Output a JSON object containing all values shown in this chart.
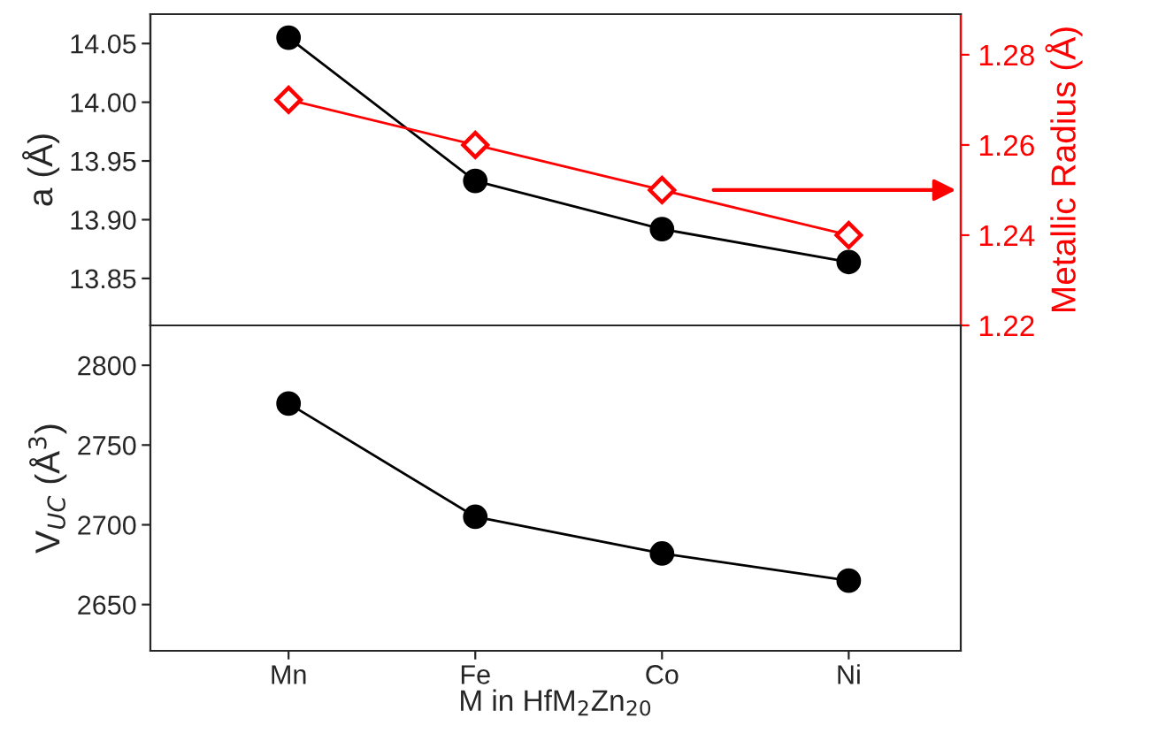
{
  "chart_data": [
    {
      "type": "line",
      "categories": [
        null,
        null,
        null,
        null
      ],
      "ylabel": "a (Å)",
      "y2label": "Metallic Radius (Å)",
      "tick_labels": "y",
      "ylim": [
        13.81,
        14.075
      ],
      "yticks": [
        13.85,
        {
          "value": 13.9,
          "label": "13.90"
        },
        13.95,
        {
          "value": 14.0,
          "label": "14.00"
        },
        14.05
      ],
      "y2lim": [
        1.22,
        1.289
      ],
      "y2ticks": [
        1.22,
        1.24,
        1.26,
        1.28
      ],
      "series": [
        {
          "color": "#000000",
          "marker": "circle",
          "values": [
            14.055,
            13.933,
            13.892,
            13.864
          ]
        },
        {
          "color": "#ff0000",
          "marker": "diamond",
          "axis": "y2",
          "values": [
            1.27,
            1.26,
            1.25,
            1.24
          ]
        }
      ]
    },
    {
      "type": "line",
      "categories": [
        "Mn",
        "Fe",
        "Co",
        "Ni"
      ],
      "ylabel": "V$_{UC}$ (Å$^{3}$)",
      "xlabel": "M in HfM$_{2}$Zn$_{20}$",
      "ylim": [
        2621,
        2825
      ],
      "yticks": [
        2650,
        2700,
        2750,
        2800
      ],
      "series": [
        {
          "color": "#000000",
          "marker": "circle",
          "values": [
            2776,
            2705,
            2682,
            2665
          ]
        }
      ]
    }
  ]
}
